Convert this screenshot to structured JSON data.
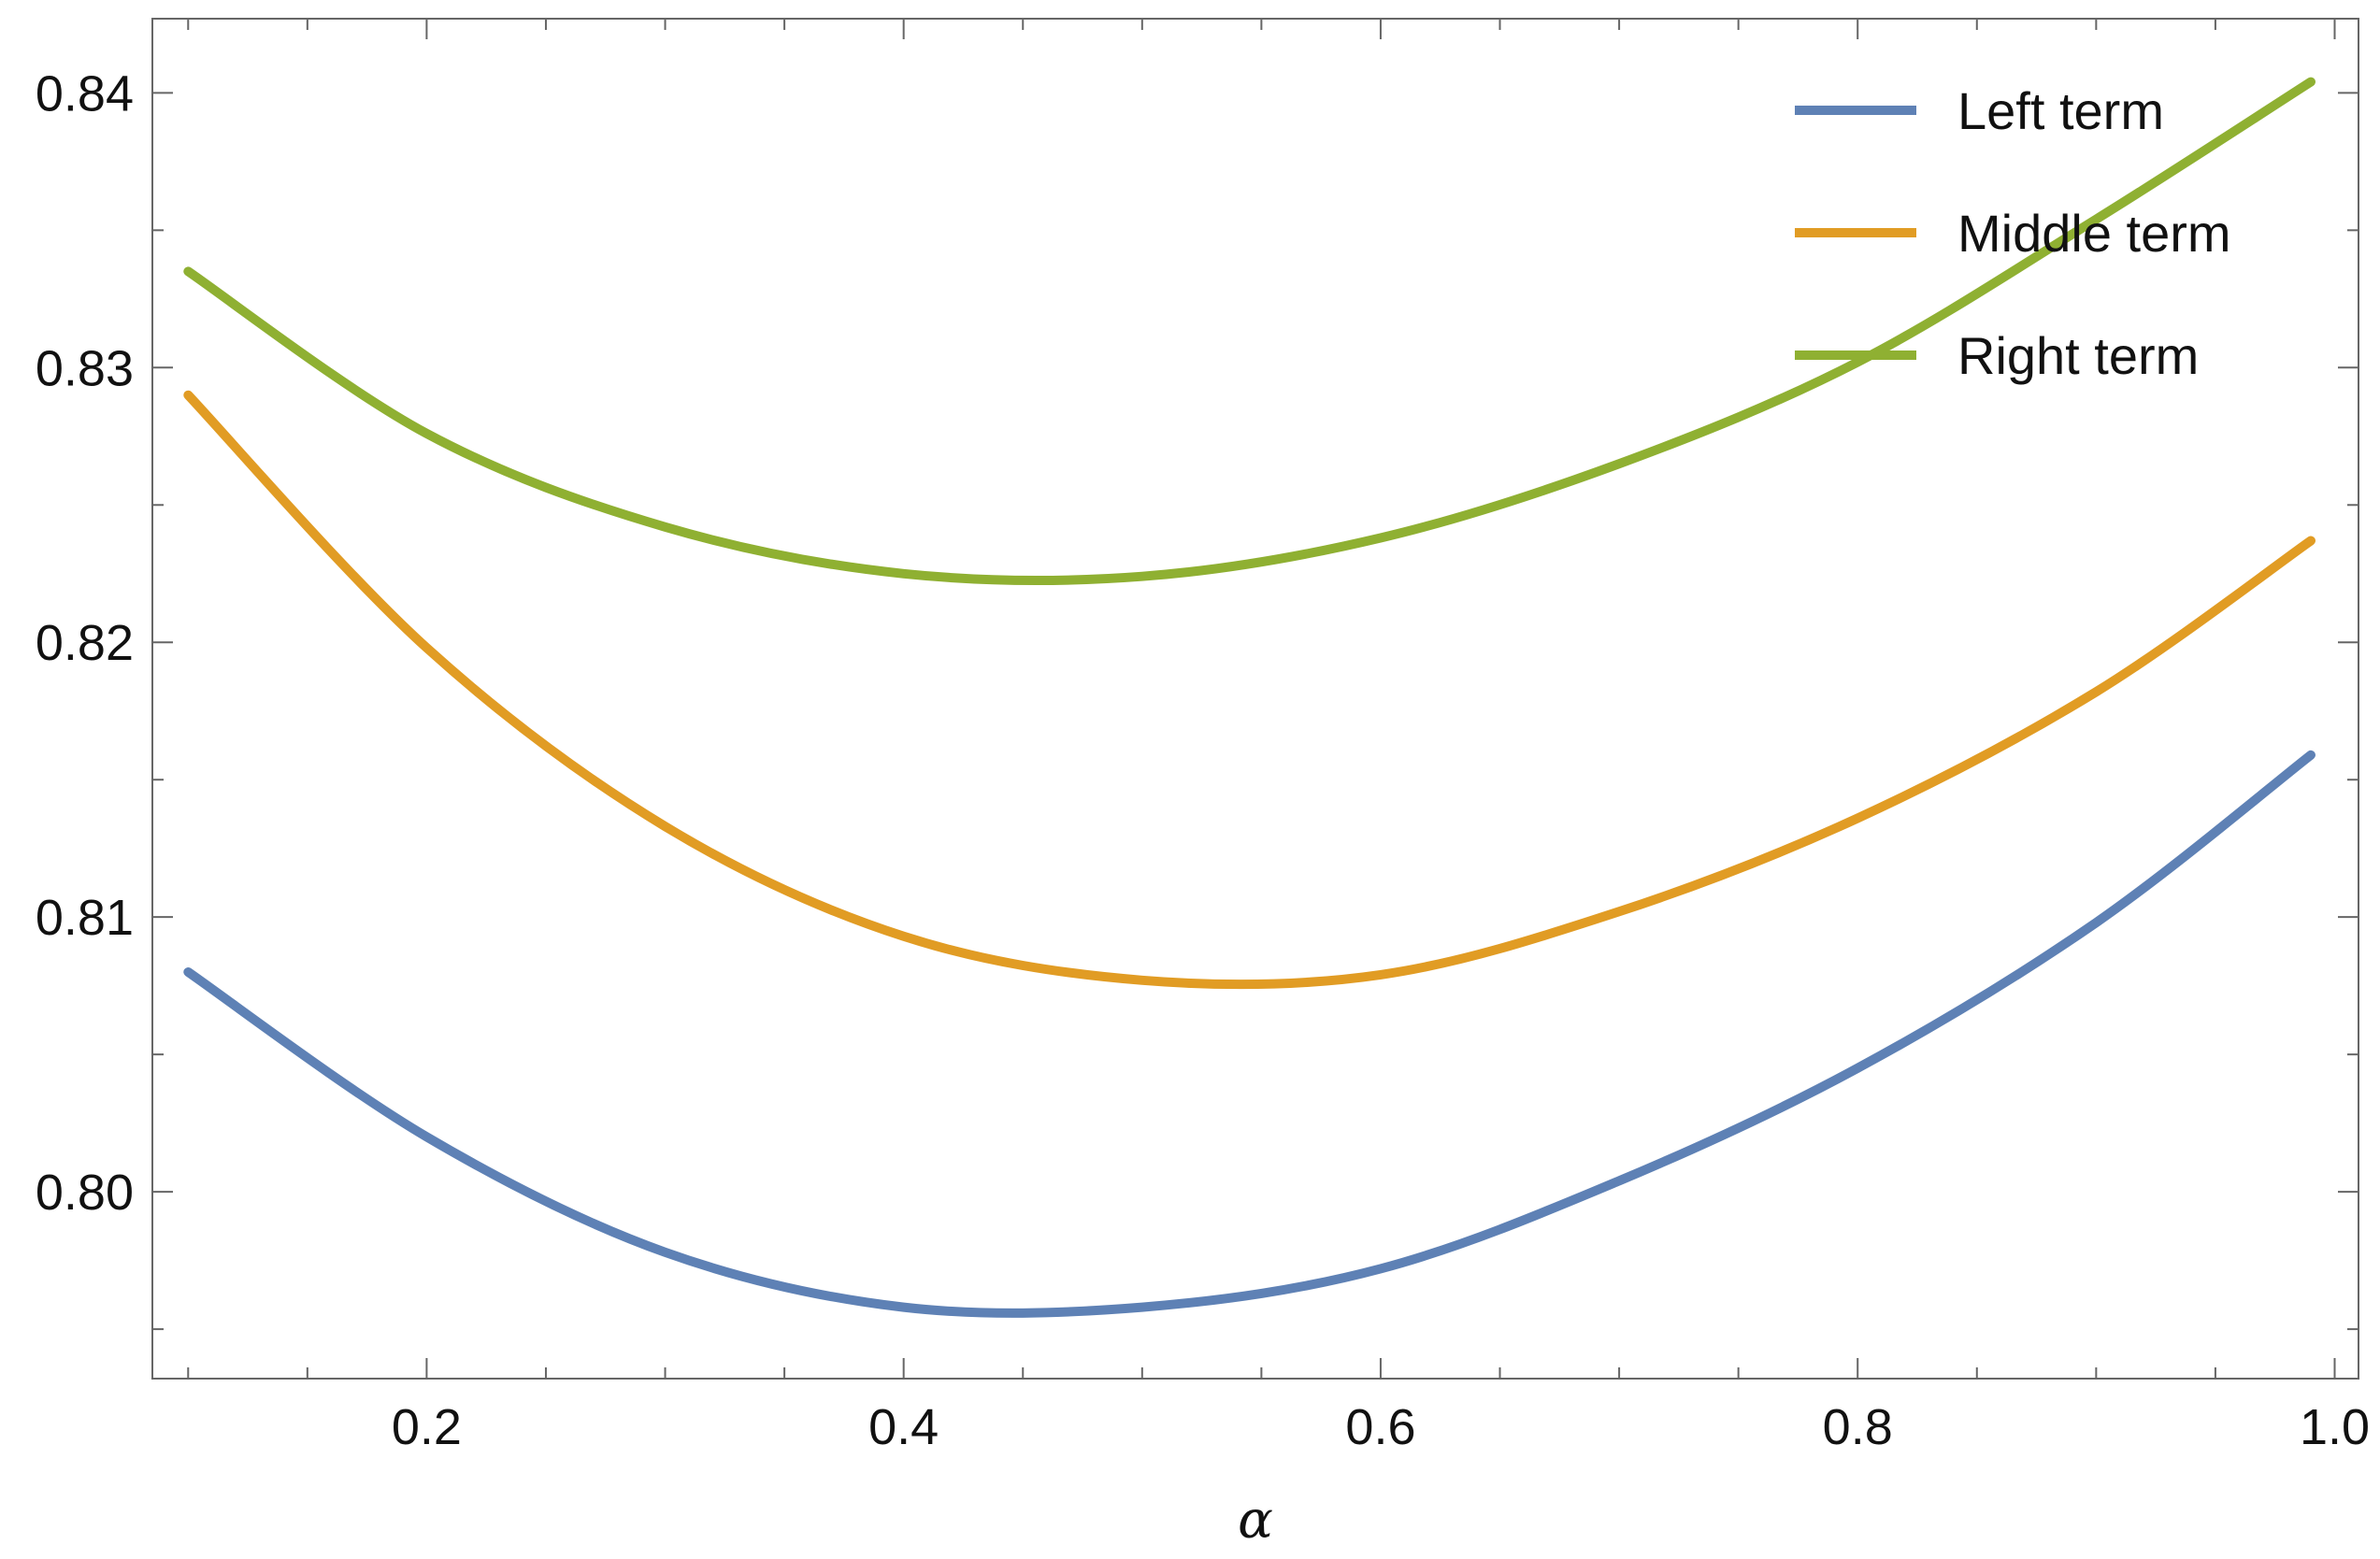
{
  "chart_data": {
    "type": "line",
    "xlabel": "α",
    "ylabel": "",
    "xlim": [
      0.085,
      1.01
    ],
    "ylim": [
      0.7932,
      0.8427
    ],
    "grid": false,
    "legend_position": "top-right",
    "x_ticks": [
      0.2,
      0.4,
      0.6,
      0.8,
      1.0
    ],
    "x_tick_labels": [
      "0.2",
      "0.4",
      "0.6",
      "0.8",
      "1.0"
    ],
    "x_minor_step": 0.05,
    "y_ticks": [
      0.8,
      0.81,
      0.82,
      0.83,
      0.84
    ],
    "y_tick_labels": [
      "0.80",
      "0.81",
      "0.82",
      "0.83",
      "0.84"
    ],
    "y_minor_step": 0.005,
    "x": [
      0.1,
      0.2,
      0.3,
      0.4,
      0.5,
      0.6,
      0.7,
      0.8,
      0.9,
      0.99
    ],
    "series": [
      {
        "name": "Left term",
        "color": "#5e81b5",
        "values": [
          0.808,
          0.802,
          0.7978,
          0.7958,
          0.7958,
          0.7972,
          0.8004,
          0.8045,
          0.8098,
          0.8159
        ]
      },
      {
        "name": "Middle term",
        "color": "#e19c24",
        "values": [
          0.829,
          0.8198,
          0.8133,
          0.8093,
          0.8077,
          0.8079,
          0.8102,
          0.8136,
          0.8182,
          0.8237
        ]
      },
      {
        "name": "Right term",
        "color": "#8fb032",
        "values": [
          0.8335,
          0.8276,
          0.8242,
          0.8225,
          0.8224,
          0.8238,
          0.8265,
          0.8302,
          0.8354,
          0.8404
        ]
      }
    ]
  }
}
